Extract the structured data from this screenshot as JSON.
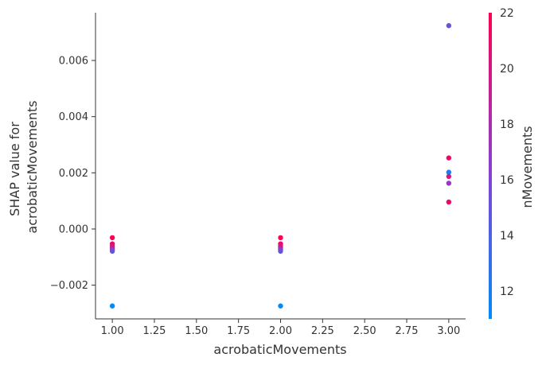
{
  "chart_data": {
    "type": "scatter",
    "title": "",
    "xlabel": "acrobaticMovements",
    "ylabel_lines": [
      "SHAP value for",
      "acrobaticMovements"
    ],
    "xlim": [
      0.9,
      3.1
    ],
    "ylim": [
      -0.0032,
      0.0077
    ],
    "xticks": [
      1.0,
      1.25,
      1.5,
      1.75,
      2.0,
      2.25,
      2.5,
      2.75,
      3.0
    ],
    "xtick_labels": [
      "1.00",
      "1.25",
      "1.50",
      "1.75",
      "2.00",
      "2.25",
      "2.50",
      "2.75",
      "3.00"
    ],
    "yticks": [
      -0.002,
      0.0,
      0.002,
      0.004,
      0.006
    ],
    "ytick_labels": [
      "−0.002",
      "0.000",
      "0.002",
      "0.004",
      "0.006"
    ],
    "grid": false,
    "points": [
      {
        "x": 1.0,
        "y": -0.00031,
        "c": 22
      },
      {
        "x": 1.0,
        "y": -0.00053,
        "c": 21
      },
      {
        "x": 1.0,
        "y": -0.00061,
        "c": 20
      },
      {
        "x": 1.0,
        "y": -0.00068,
        "c": 19
      },
      {
        "x": 1.0,
        "y": -0.00074,
        "c": 17
      },
      {
        "x": 1.0,
        "y": -0.00079,
        "c": 15
      },
      {
        "x": 1.0,
        "y": -0.00274,
        "c": 11
      },
      {
        "x": 2.0,
        "y": -0.00031,
        "c": 22
      },
      {
        "x": 2.0,
        "y": -0.00053,
        "c": 21
      },
      {
        "x": 2.0,
        "y": -0.00061,
        "c": 20
      },
      {
        "x": 2.0,
        "y": -0.00068,
        "c": 19
      },
      {
        "x": 2.0,
        "y": -0.00074,
        "c": 17
      },
      {
        "x": 2.0,
        "y": -0.00079,
        "c": 15
      },
      {
        "x": 2.0,
        "y": -0.00274,
        "c": 11
      },
      {
        "x": 3.0,
        "y": 0.00724,
        "c": 15
      },
      {
        "x": 3.0,
        "y": 0.00253,
        "c": 21
      },
      {
        "x": 3.0,
        "y": 0.00202,
        "c": 12
      },
      {
        "x": 3.0,
        "y": 0.00187,
        "c": 20
      },
      {
        "x": 3.0,
        "y": 0.00163,
        "c": 17
      },
      {
        "x": 3.0,
        "y": 0.00096,
        "c": 21
      }
    ],
    "colorbar": {
      "label": "nMovements",
      "range": [
        11,
        22
      ],
      "ticks": [
        12,
        14,
        16,
        18,
        20,
        22
      ],
      "tick_labels": [
        "12",
        "14",
        "16",
        "18",
        "20",
        "22"
      ],
      "color_low": "#008bfb",
      "color_mid": "#8c3ed0",
      "color_high": "#ff0052"
    }
  }
}
